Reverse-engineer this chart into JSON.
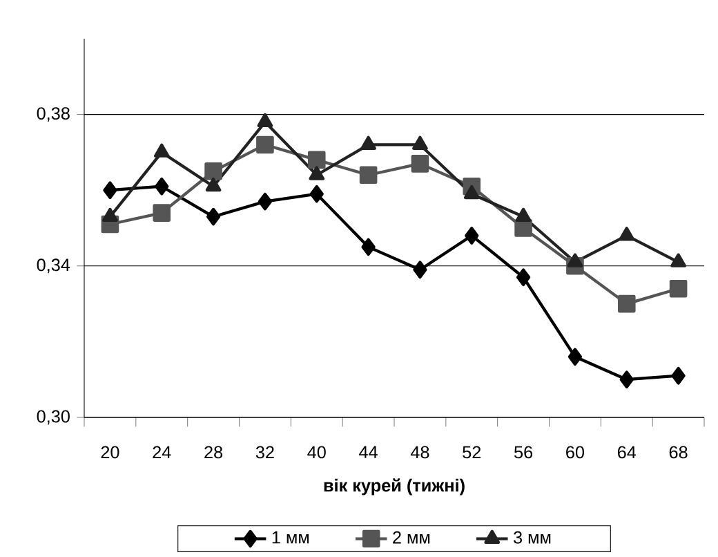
{
  "chart_data": {
    "type": "line",
    "xlabel": "**вік курей (тижні)**",
    "categories": [
      "20",
      "24",
      "28",
      "32",
      "40",
      "44",
      "48",
      "52",
      "56",
      "60",
      "64",
      "68"
    ],
    "series": [
      {
        "name": "1 мм",
        "color": "#000000",
        "marker": "diamond",
        "values": [
          0.36,
          0.361,
          0.353,
          0.357,
          0.359,
          0.345,
          0.339,
          0.348,
          0.337,
          0.316,
          0.31,
          0.311
        ]
      },
      {
        "name": "2 мм",
        "color": "#555555",
        "marker": "square",
        "values": [
          0.351,
          0.354,
          0.365,
          0.372,
          0.368,
          0.364,
          0.367,
          0.361,
          0.35,
          0.34,
          0.33,
          0.334
        ]
      },
      {
        "name": "3 мм",
        "color": "#222222",
        "marker": "triangle",
        "values": [
          0.353,
          0.37,
          0.361,
          0.378,
          0.364,
          0.372,
          0.372,
          0.359,
          0.353,
          0.341,
          0.348,
          0.341
        ]
      }
    ],
    "ylim": [
      0.3,
      0.4
    ],
    "yticks": [
      {
        "value": 0.3,
        "label": "0,30"
      },
      {
        "value": 0.34,
        "label": "0,34"
      },
      {
        "value": 0.38,
        "label": "0,38"
      }
    ],
    "grid": "y",
    "legend": "bottom",
    "line_style": "solid"
  }
}
